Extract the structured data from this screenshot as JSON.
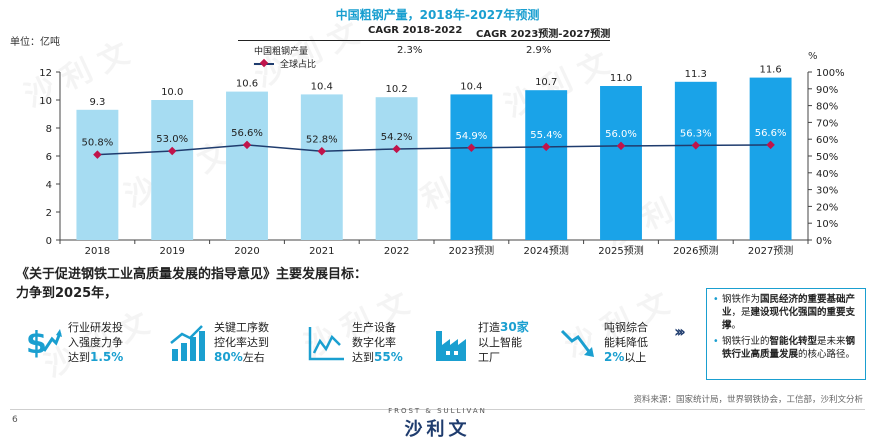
{
  "chart_data": {
    "type": "bar",
    "title": "中国粗钢产量，2018年-2027年预测",
    "unit_label": "单位：亿吨",
    "right_unit_label": "%",
    "categories": [
      "2018",
      "2019",
      "2020",
      "2021",
      "2022",
      "2023预测",
      "2024预测",
      "2025预测",
      "2026预测",
      "2027预测"
    ],
    "ylim": [
      0,
      12
    ],
    "y_ticks": [
      0,
      2,
      4,
      6,
      8,
      10,
      12
    ],
    "y2lim": [
      0,
      100
    ],
    "y2_ticks": [
      0,
      10,
      20,
      30,
      40,
      50,
      60,
      70,
      80,
      90,
      100
    ],
    "y2_tick_suffix": "%",
    "grid": false,
    "legend_position": "top-left",
    "series": [
      {
        "name": "中国粗钢产量",
        "kind": "bar",
        "values": [
          9.3,
          10.0,
          10.6,
          10.4,
          10.2,
          10.4,
          10.7,
          11.0,
          11.3,
          11.6
        ],
        "labels": [
          "9.3",
          "10.0",
          "10.6",
          "10.4",
          "10.2",
          "10.4",
          "10.7",
          "11.0",
          "11.3",
          "11.6"
        ],
        "colors": [
          "#a6dcf2",
          "#a6dcf2",
          "#a6dcf2",
          "#a6dcf2",
          "#a6dcf2",
          "#1aa3e8",
          "#1aa3e8",
          "#1aa3e8",
          "#1aa3e8",
          "#1aa3e8"
        ]
      },
      {
        "name": "全球占比",
        "kind": "line",
        "axis": "right",
        "color": "#1f3c6e",
        "marker_color": "#c0144b",
        "values": [
          50.8,
          53.0,
          56.6,
          52.8,
          54.2,
          54.9,
          55.4,
          56.0,
          56.3,
          56.6
        ],
        "labels": [
          "50.8%",
          "53.0%",
          "56.6%",
          "52.8%",
          "54.2%",
          "54.9%",
          "55.4%",
          "56.0%",
          "56.3%",
          "56.6%"
        ]
      }
    ],
    "cagr": {
      "header1": "CAGR 2018-2022",
      "header2": "CAGR 2023预测-2027预测",
      "value1": "2.3%",
      "value2": "2.9%"
    }
  },
  "section": {
    "title_line1": "《关于促进钢铁工业高质量发展的指导意见》主要发展目标：",
    "title_line2": "力争到2025年，"
  },
  "goals": [
    {
      "icon": "dollar-growth-icon",
      "line1": "行业研发投",
      "line2": "入强度力争",
      "line3_pre": "达到",
      "highlight": "1.5%",
      "line3_post": ""
    },
    {
      "icon": "bar-chart-up-icon",
      "line1": "关键工序数",
      "line2": "控化率达到",
      "line3_pre": "",
      "highlight": "80%",
      "line3_post": "左右"
    },
    {
      "icon": "line-chart-icon",
      "line1": "生产设备",
      "line2": "数字化率",
      "line3_pre": "达到",
      "highlight": "55%",
      "line3_post": ""
    },
    {
      "icon": "factory-icon",
      "line1_pre": "打造",
      "highlight": "30家",
      "line2": "以上智能",
      "line3": "工厂"
    },
    {
      "icon": "trend-down-icon",
      "line1": "吨钢综合",
      "line2": "能耗降低",
      "highlight": "2%",
      "line3_post": "以上"
    }
  ],
  "info_box": {
    "item1_pre": "钢铁作为",
    "item1_bold": "国民经济的重要基础产业",
    "item1_mid": "，是",
    "item1_bold2": "建设现代化强国的重要支撑",
    "item1_post": "。",
    "item2_pre": "钢铁行业的",
    "item2_bold": "智能化转型",
    "item2_mid": "是未来",
    "item2_bold2": "钢铁行业高质量发展",
    "item2_post": "的核心路径。"
  },
  "footer": {
    "source": "资料来源：国家统计局，世界钢铁协会，工信部，沙利文分析",
    "page_number": "6",
    "brand_en": "FROST & SULLIVAN",
    "brand_cn": "沙利文"
  },
  "watermark": "沙 利 文",
  "colors": {
    "accent": "#1a9fd0",
    "navy": "#1f3c6e",
    "bar_history": "#a6dcf2",
    "bar_forecast": "#1aa3e8",
    "marker": "#c0144b"
  }
}
